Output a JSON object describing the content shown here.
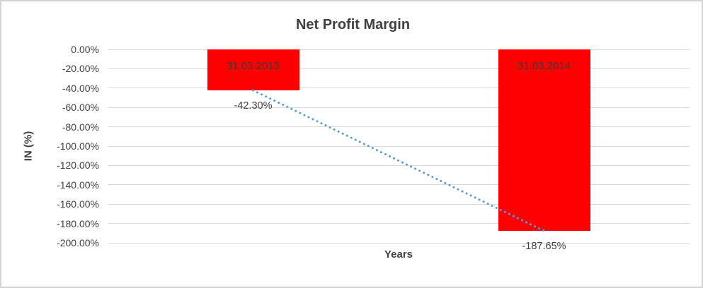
{
  "chart_data": {
    "type": "bar",
    "title": "Net Profit Margin",
    "xlabel": "Years",
    "ylabel": "IN (%)",
    "categories": [
      "31.03.2013",
      "31.03.2014"
    ],
    "values": [
      -42.3,
      -187.65
    ],
    "value_labels": [
      "-42.30%",
      "-187.65%"
    ],
    "ylim": [
      0,
      -200
    ],
    "ytick_labels": [
      "0.00%",
      "-20.00%",
      "-40.00%",
      "-60.00%",
      "-80.00%",
      "-100.00%",
      "-120.00%",
      "-140.00%",
      "-160.00%",
      "-180.00%",
      "-200.00%"
    ],
    "grid": true,
    "legend": "none",
    "bar_color": "#ff0000",
    "gridline_color": "#d9d9d9",
    "text_color": "#404040",
    "trendline": {
      "style": "dotted",
      "color": "#5b9bd5",
      "from_value": -42.3,
      "to_value": -187.65
    }
  }
}
